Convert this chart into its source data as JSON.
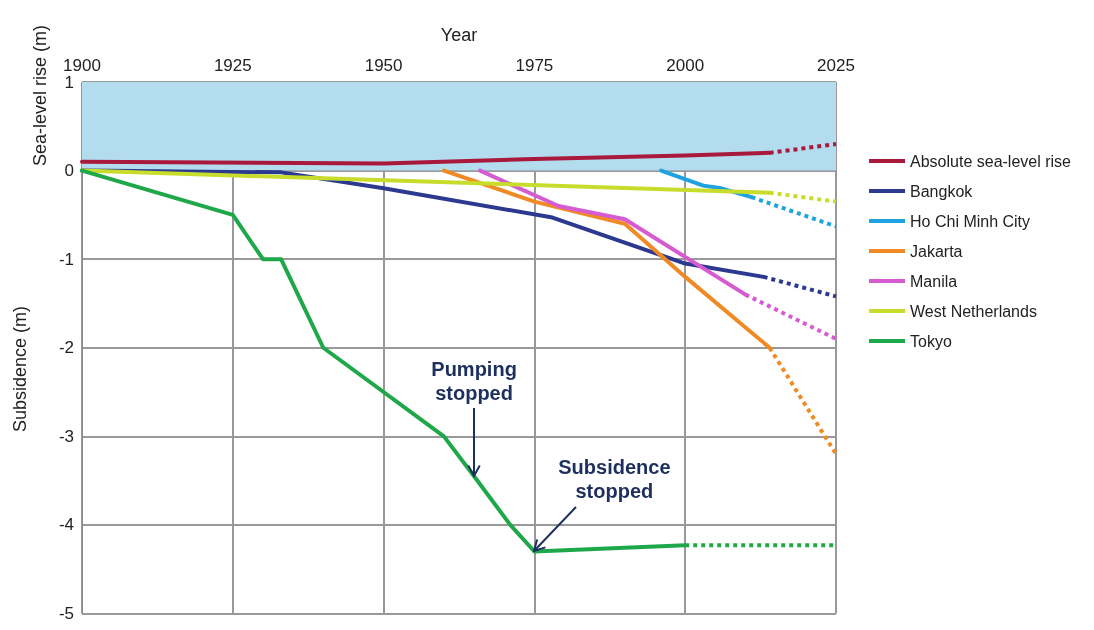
{
  "chart_data": {
    "type": "line",
    "xlabel": "Year",
    "ylabel": "Subsidence (m)",
    "xlim": [
      1900,
      2025
    ],
    "xticks": [
      1900,
      1925,
      1950,
      1975,
      2000,
      2025
    ],
    "ylim": [
      -5,
      1
    ],
    "yticks": [
      -5,
      -4,
      -3,
      -2,
      -1,
      0,
      1
    ],
    "grid": true,
    "legend": "right",
    "marker": "none",
    "bands": [
      {
        "axis": "y",
        "from": 0,
        "to": 1,
        "label": "Sea-level rise (m)",
        "color": "#b3dcef"
      }
    ],
    "series": [
      {
        "name": "Absolute sea-level rise",
        "color": "#a8193c",
        "x": [
          1900,
          1950,
          1975,
          2000,
          2014
        ],
        "values": [
          0.1,
          0.08,
          0.13,
          0.17,
          0.2
        ]
      },
      {
        "name": "Bangkok",
        "color": "#2b3990",
        "x": [
          1900,
          1933,
          1950,
          1978,
          2000,
          2013
        ],
        "values": [
          0,
          -0.02,
          -0.2,
          -0.53,
          -1.05,
          -1.2
        ]
      },
      {
        "name": "Ho Chi Minh City",
        "color": "#1fa3e0",
        "x": [
          1996,
          2003,
          2006,
          2011
        ],
        "values": [
          0,
          -0.17,
          -0.2,
          -0.3
        ]
      },
      {
        "name": "Jakarta",
        "color": "#f08a24",
        "x": [
          1960,
          1975,
          1990,
          2000,
          2014
        ],
        "values": [
          0,
          -0.35,
          -0.6,
          -1.2,
          -2.0
        ]
      },
      {
        "name": "Manila",
        "color": "#d65ad0",
        "x": [
          1966,
          1979,
          1990,
          2010
        ],
        "values": [
          0,
          -0.4,
          -0.55,
          -1.4
        ]
      },
      {
        "name": "West Netherlands",
        "color": "#c8dc2c",
        "x": [
          1900,
          2014
        ],
        "values": [
          0,
          -0.25
        ]
      },
      {
        "name": "Tokyo",
        "color": "#1ea84a",
        "x": [
          1900,
          1925,
          1930,
          1933,
          1940,
          1960,
          1965,
          1971,
          1975,
          2000
        ],
        "values": [
          0,
          -0.5,
          -1,
          -1,
          -2,
          -3,
          -3.45,
          -4,
          -4.3,
          -4.23
        ]
      },
      {
        "color": "#a8193c",
        "line_style": "dotted",
        "x": [
          2014,
          2025
        ],
        "values": [
          0.2,
          0.3
        ]
      },
      {
        "color": "#2b3990",
        "line_style": "dotted",
        "x": [
          2013,
          2025
        ],
        "values": [
          -1.2,
          -1.42
        ]
      },
      {
        "color": "#1fa3e0",
        "line_style": "dotted",
        "x": [
          2011,
          2025
        ],
        "values": [
          -0.3,
          -0.63
        ]
      },
      {
        "color": "#f08a24",
        "line_style": "dotted",
        "x": [
          2014,
          2025
        ],
        "values": [
          -2.0,
          -3.2
        ]
      },
      {
        "color": "#d65ad0",
        "line_style": "dotted",
        "x": [
          2010,
          2025
        ],
        "values": [
          -1.4,
          -1.9
        ]
      },
      {
        "color": "#c8dc2c",
        "line_style": "dotted",
        "x": [
          2014,
          2025
        ],
        "values": [
          -0.25,
          -0.35
        ]
      },
      {
        "color": "#1ea84a",
        "line_style": "dotted",
        "x": [
          2000,
          2025
        ],
        "values": [
          -4.23,
          -4.23
        ]
      }
    ],
    "annotations": [
      {
        "text": "Pumping stopped",
        "x": 1965,
        "y": -3.45
      },
      {
        "text": "Subsidence stopped",
        "x": 1975,
        "y": -4.3
      }
    ]
  }
}
